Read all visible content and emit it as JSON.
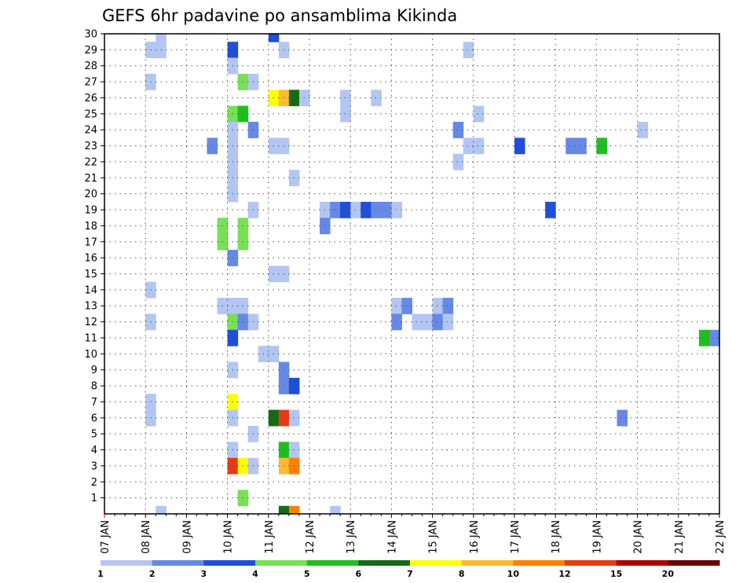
{
  "chart_data": {
    "type": "heatmap",
    "title": "GEFS 6hr padavine po ansamblima Kikinda",
    "x_tick_labels": [
      "07 JAN",
      "08 JAN",
      "09 JAN",
      "10 JAN",
      "11 JAN",
      "12 JAN",
      "13 JAN",
      "14 JAN",
      "15 JAN",
      "16 JAN",
      "17 JAN",
      "18 JAN",
      "19 JAN",
      "20 JAN",
      "21 JAN",
      "22 JAN"
    ],
    "y_tick_labels": [
      "1",
      "2",
      "3",
      "4",
      "5",
      "6",
      "7",
      "8",
      "9",
      "10",
      "11",
      "12",
      "13",
      "14",
      "15",
      "16",
      "17",
      "18",
      "19",
      "20",
      "21",
      "22",
      "23",
      "24",
      "25",
      "26",
      "27",
      "28",
      "29",
      "30"
    ],
    "x_range_days": [
      0,
      15
    ],
    "y_range": [
      0,
      30
    ],
    "grid": true,
    "colorbar": {
      "labels": [
        "1",
        "2",
        "3",
        "4",
        "5",
        "6",
        "7",
        "8",
        "10",
        "12",
        "15",
        "20"
      ],
      "colors": [
        "#b3c6f2",
        "#6688e6",
        "#1e4fd8",
        "#77e055",
        "#1fbe1f",
        "#146b14",
        "#ffff00",
        "#ffb933",
        "#ff8000",
        "#e63a12",
        "#b30000",
        "#6b0000"
      ]
    },
    "cells": [
      {
        "x": 1.25,
        "y": 30,
        "v": 1.5
      },
      {
        "x": 1.0,
        "y": 29,
        "v": 1.5
      },
      {
        "x": 1.25,
        "y": 29,
        "v": 1.5
      },
      {
        "x": 1.0,
        "y": 27,
        "v": 1.5
      },
      {
        "x": 0.0,
        "y": 0,
        "v": 0
      },
      {
        "x": 3.0,
        "y": 29,
        "v": 3.5
      },
      {
        "x": 3.0,
        "y": 28,
        "v": 1.5
      },
      {
        "x": 4.0,
        "y": 30,
        "v": 3.5
      },
      {
        "x": 4.25,
        "y": 29,
        "v": 1.5
      },
      {
        "x": 8.75,
        "y": 29,
        "v": 1.5
      },
      {
        "x": 3.25,
        "y": 27,
        "v": 4.5
      },
      {
        "x": 3.5,
        "y": 27,
        "v": 1.5
      },
      {
        "x": 4.0,
        "y": 26,
        "v": 7.5
      },
      {
        "x": 4.25,
        "y": 26,
        "v": 9
      },
      {
        "x": 4.5,
        "y": 26,
        "v": 6.5
      },
      {
        "x": 4.75,
        "y": 26,
        "v": 1.5
      },
      {
        "x": 5.75,
        "y": 26,
        "v": 1.5
      },
      {
        "x": 6.5,
        "y": 26,
        "v": 1.5
      },
      {
        "x": 3.0,
        "y": 25,
        "v": 4.5
      },
      {
        "x": 3.25,
        "y": 25,
        "v": 5.5
      },
      {
        "x": 5.75,
        "y": 25,
        "v": 1.5
      },
      {
        "x": 9.0,
        "y": 25,
        "v": 1.5
      },
      {
        "x": 3.0,
        "y": 24,
        "v": 1.5
      },
      {
        "x": 3.5,
        "y": 24,
        "v": 2.5
      },
      {
        "x": 8.5,
        "y": 24,
        "v": 2.5
      },
      {
        "x": 13.0,
        "y": 24,
        "v": 1.5
      },
      {
        "x": 2.5,
        "y": 23,
        "v": 2.5
      },
      {
        "x": 3.0,
        "y": 23,
        "v": 1.5
      },
      {
        "x": 4.0,
        "y": 23,
        "v": 1.5
      },
      {
        "x": 4.25,
        "y": 23,
        "v": 1.5
      },
      {
        "x": 8.75,
        "y": 23,
        "v": 1.5
      },
      {
        "x": 9.0,
        "y": 23,
        "v": 1.5
      },
      {
        "x": 10.0,
        "y": 23,
        "v": 3.5
      },
      {
        "x": 11.25,
        "y": 23,
        "v": 2.5
      },
      {
        "x": 11.5,
        "y": 23,
        "v": 2.5
      },
      {
        "x": 12.0,
        "y": 23,
        "v": 5.5
      },
      {
        "x": 3.0,
        "y": 22,
        "v": 1.5
      },
      {
        "x": 8.5,
        "y": 22,
        "v": 1.5
      },
      {
        "x": 3.0,
        "y": 21,
        "v": 1.5
      },
      {
        "x": 4.5,
        "y": 21,
        "v": 1.5
      },
      {
        "x": 3.0,
        "y": 20,
        "v": 1.5
      },
      {
        "x": 3.5,
        "y": 19,
        "v": 1.5
      },
      {
        "x": 5.25,
        "y": 19,
        "v": 1.5
      },
      {
        "x": 5.5,
        "y": 19,
        "v": 2.5
      },
      {
        "x": 5.75,
        "y": 19,
        "v": 3.5
      },
      {
        "x": 6.0,
        "y": 19,
        "v": 1.5
      },
      {
        "x": 6.25,
        "y": 19,
        "v": 3.5
      },
      {
        "x": 6.5,
        "y": 19,
        "v": 2.5
      },
      {
        "x": 6.75,
        "y": 19,
        "v": 2.5
      },
      {
        "x": 7.0,
        "y": 19,
        "v": 1.5
      },
      {
        "x": 10.75,
        "y": 19,
        "v": 3.5
      },
      {
        "x": 2.75,
        "y": 18,
        "v": 4.5
      },
      {
        "x": 3.25,
        "y": 18,
        "v": 4.5
      },
      {
        "x": 5.25,
        "y": 18,
        "v": 2.5
      },
      {
        "x": 2.75,
        "y": 17,
        "v": 4.5
      },
      {
        "x": 3.25,
        "y": 17,
        "v": 4.5
      },
      {
        "x": 3.0,
        "y": 16,
        "v": 2.5
      },
      {
        "x": 4.0,
        "y": 15,
        "v": 1.5
      },
      {
        "x": 4.25,
        "y": 15,
        "v": 1.5
      },
      {
        "x": 1.0,
        "y": 14,
        "v": 1.5
      },
      {
        "x": 2.75,
        "y": 13,
        "v": 1.5
      },
      {
        "x": 3.0,
        "y": 13,
        "v": 1.5
      },
      {
        "x": 3.25,
        "y": 13,
        "v": 1.5
      },
      {
        "x": 7.0,
        "y": 13,
        "v": 1.5
      },
      {
        "x": 7.25,
        "y": 13,
        "v": 2.5
      },
      {
        "x": 8.0,
        "y": 13,
        "v": 1.5
      },
      {
        "x": 8.25,
        "y": 13,
        "v": 2.5
      },
      {
        "x": 1.0,
        "y": 12,
        "v": 1.5
      },
      {
        "x": 3.0,
        "y": 12,
        "v": 4.5
      },
      {
        "x": 3.25,
        "y": 12,
        "v": 2.5
      },
      {
        "x": 3.5,
        "y": 12,
        "v": 1.5
      },
      {
        "x": 7.0,
        "y": 12,
        "v": 2.5
      },
      {
        "x": 7.5,
        "y": 12,
        "v": 1.5
      },
      {
        "x": 7.75,
        "y": 12,
        "v": 1.5
      },
      {
        "x": 8.0,
        "y": 12,
        "v": 2.5
      },
      {
        "x": 8.25,
        "y": 12,
        "v": 1.5
      },
      {
        "x": 3.0,
        "y": 11,
        "v": 3.5
      },
      {
        "x": 14.5,
        "y": 11,
        "v": 5.5
      },
      {
        "x": 14.75,
        "y": 11,
        "v": 2.5
      },
      {
        "x": 3.75,
        "y": 10,
        "v": 1.5
      },
      {
        "x": 4.0,
        "y": 10,
        "v": 1.5
      },
      {
        "x": 3.0,
        "y": 9,
        "v": 1.5
      },
      {
        "x": 4.25,
        "y": 9,
        "v": 2.5
      },
      {
        "x": 4.25,
        "y": 8,
        "v": 2.5
      },
      {
        "x": 4.5,
        "y": 8,
        "v": 3.5
      },
      {
        "x": 1.0,
        "y": 7,
        "v": 1.5
      },
      {
        "x": 3.0,
        "y": 7,
        "v": 7.5
      },
      {
        "x": 1.0,
        "y": 6,
        "v": 1.5
      },
      {
        "x": 3.0,
        "y": 6,
        "v": 1.5
      },
      {
        "x": 4.0,
        "y": 6,
        "v": 6.5
      },
      {
        "x": 4.25,
        "y": 6,
        "v": 13
      },
      {
        "x": 4.5,
        "y": 6,
        "v": 1.5
      },
      {
        "x": 12.5,
        "y": 6,
        "v": 2.5
      },
      {
        "x": 3.5,
        "y": 5,
        "v": 1.5
      },
      {
        "x": 3.0,
        "y": 4,
        "v": 1.5
      },
      {
        "x": 4.25,
        "y": 4,
        "v": 5.5
      },
      {
        "x": 4.5,
        "y": 4,
        "v": 1.5
      },
      {
        "x": 3.0,
        "y": 3,
        "v": 13
      },
      {
        "x": 3.25,
        "y": 3,
        "v": 7.5
      },
      {
        "x": 3.5,
        "y": 3,
        "v": 1.5
      },
      {
        "x": 4.25,
        "y": 3,
        "v": 9
      },
      {
        "x": 4.5,
        "y": 3,
        "v": 11
      },
      {
        "x": 3.25,
        "y": 1,
        "v": 4.5
      },
      {
        "x": 1.25,
        "y": 0,
        "v": 1.5
      },
      {
        "x": 4.25,
        "y": 0,
        "v": 6.5
      },
      {
        "x": 4.5,
        "y": 0,
        "v": 11
      },
      {
        "x": 5.5,
        "y": 0,
        "v": 1.5
      }
    ]
  }
}
